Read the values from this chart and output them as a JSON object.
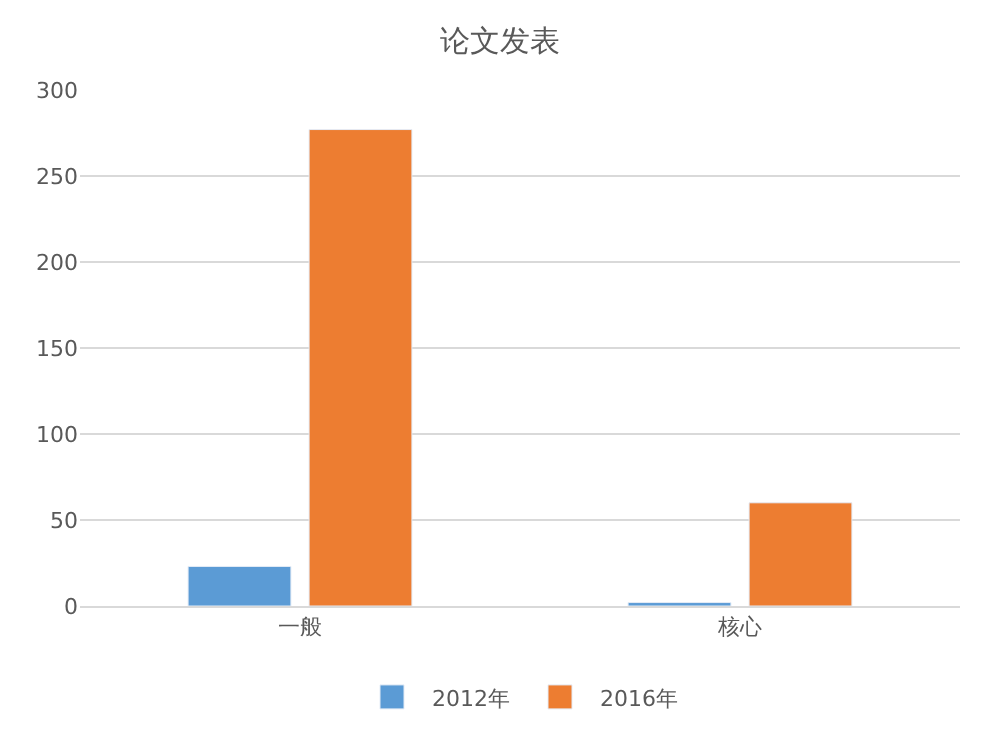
{
  "chart_data": {
    "type": "bar",
    "title": "论文发表",
    "categories": [
      "一般",
      "核心"
    ],
    "series": [
      {
        "name": "2012年",
        "color": "#5b9bd5",
        "values": [
          23,
          2
        ]
      },
      {
        "name": "2016年",
        "color": "#ed7d31",
        "values": [
          277,
          60
        ]
      }
    ],
    "ylim": [
      0,
      300
    ],
    "yticks": [
      0,
      50,
      100,
      150,
      200,
      250,
      300
    ],
    "grid": "y",
    "legend": "bottom"
  }
}
